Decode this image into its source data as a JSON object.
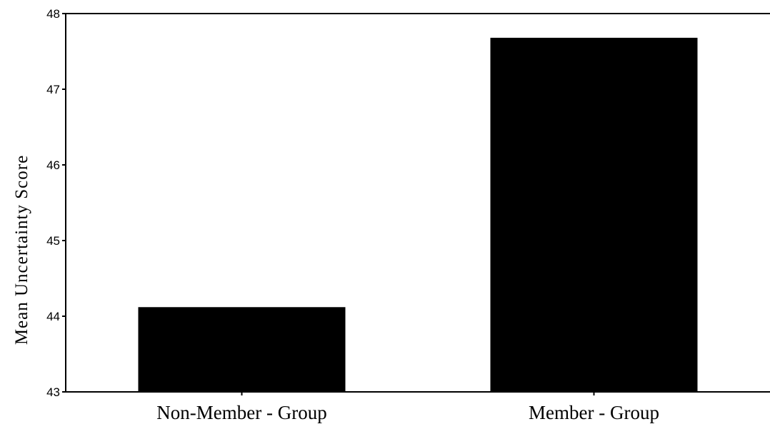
{
  "chart_data": {
    "type": "bar",
    "categories": [
      "Non-Member - Group",
      "Member - Group"
    ],
    "values": [
      44.12,
      47.68
    ],
    "ylabel": "Mean Uncertainty Score",
    "xlabel": "",
    "ylim": [
      43,
      48
    ],
    "yticks": [
      "43",
      "44",
      "45",
      "46",
      "47",
      "48"
    ],
    "grid": false,
    "bar_color": "#000000"
  }
}
